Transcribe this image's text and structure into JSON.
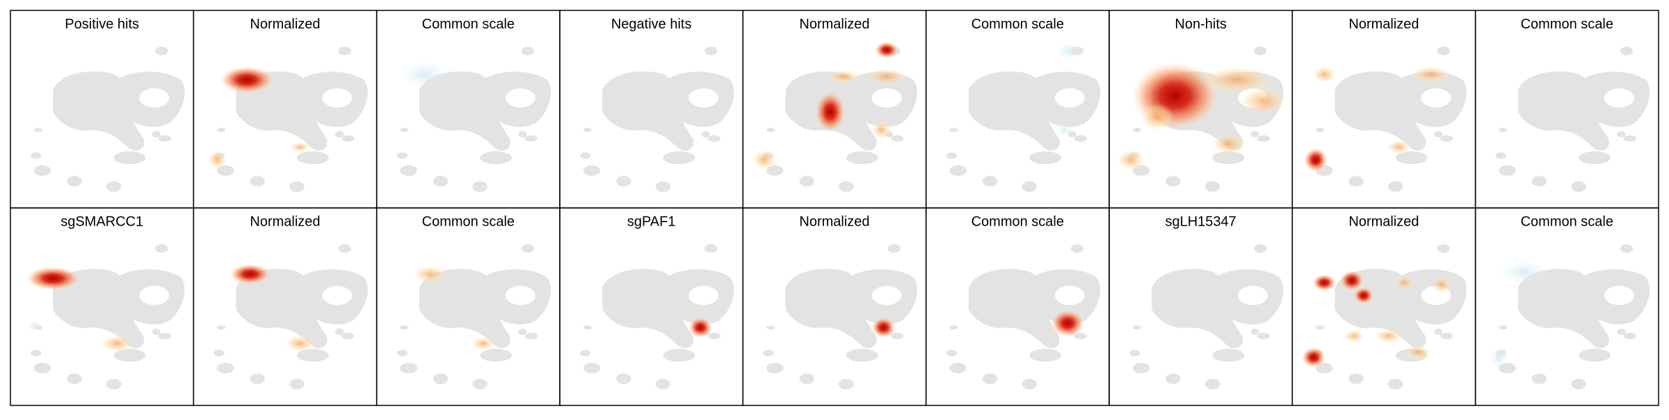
{
  "panels": [
    [
      "Positive hits",
      "Normalized",
      "Common scale",
      "Negative hits",
      "Normalized",
      "Common scale",
      "Non-hits",
      "Normalized",
      "Common scale"
    ],
    [
      "sgSMARCC1",
      "Normalized",
      "Common scale",
      "sgPAF1",
      "Normalized",
      "Common scale",
      "sgLH15347",
      "Normalized",
      "Common scale"
    ]
  ]
}
